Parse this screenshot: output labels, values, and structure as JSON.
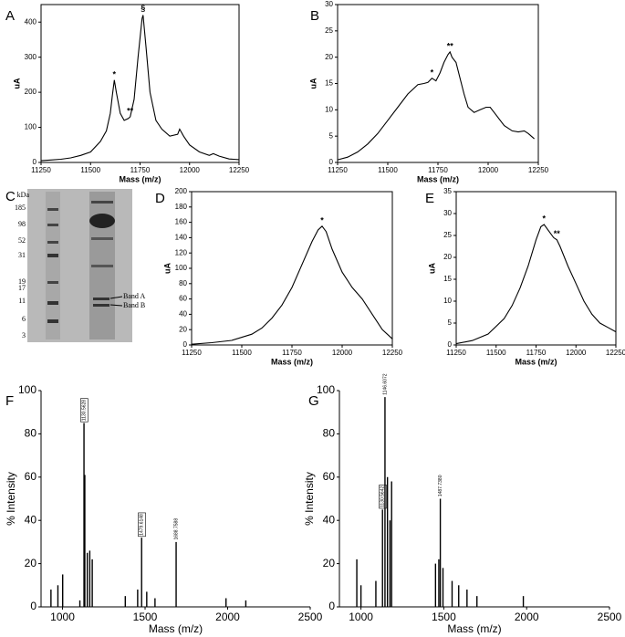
{
  "chart_data": [
    {
      "label": "A",
      "type": "line",
      "color": "#000000",
      "xlabel": "Mass (m/z)",
      "ylabel": "uA",
      "xlim": [
        11250,
        12250
      ],
      "ylim": [
        0,
        450
      ],
      "xticks": [
        11250,
        11500,
        11750,
        12000,
        12250
      ],
      "yticks": [
        0,
        100,
        200,
        300,
        400
      ],
      "x": [
        11250,
        11300,
        11350,
        11400,
        11450,
        11500,
        11550,
        11580,
        11600,
        11610,
        11620,
        11630,
        11650,
        11670,
        11690,
        11700,
        11720,
        11740,
        11760,
        11765,
        11780,
        11800,
        11830,
        11860,
        11900,
        11940,
        11950,
        11970,
        12000,
        12050,
        12100,
        12120,
        12150,
        12200,
        12250
      ],
      "values": [
        5,
        7,
        9,
        13,
        20,
        30,
        60,
        90,
        140,
        190,
        235,
        200,
        140,
        120,
        125,
        130,
        180,
        300,
        410,
        420,
        330,
        200,
        120,
        95,
        75,
        80,
        95,
        75,
        50,
        30,
        20,
        25,
        18,
        10,
        8
      ],
      "annotations": [
        {
          "text": "*",
          "x": 11620,
          "y": 250
        },
        {
          "text": "**",
          "x": 11700,
          "y": 145
        },
        {
          "text": "§",
          "x": 11765,
          "y": 438
        }
      ]
    },
    {
      "label": "B",
      "type": "line",
      "color": "#000000",
      "xlabel": "Mass (m/z)",
      "ylabel": "uA",
      "xlim": [
        11250,
        12250
      ],
      "ylim": [
        0,
        30
      ],
      "xticks": [
        11250,
        11500,
        11750,
        12000,
        12250
      ],
      "yticks": [
        0,
        5,
        10,
        15,
        20,
        25,
        30
      ],
      "x": [
        11250,
        11300,
        11350,
        11400,
        11450,
        11500,
        11550,
        11600,
        11650,
        11680,
        11700,
        11720,
        11740,
        11760,
        11780,
        11800,
        11810,
        11820,
        11840,
        11860,
        11880,
        11900,
        11930,
        11960,
        11990,
        12010,
        12040,
        12080,
        12120,
        12150,
        12180,
        12200,
        12230
      ],
      "values": [
        0.5,
        1,
        2,
        3.5,
        5.5,
        8,
        10.5,
        13,
        14.8,
        15,
        15.2,
        16,
        15.5,
        17,
        19,
        20.5,
        21,
        20,
        19,
        16,
        13,
        10.5,
        9.5,
        10,
        10.5,
        10.5,
        9,
        7,
        6,
        5.8,
        6,
        5.5,
        4.5
      ],
      "annotations": [
        {
          "text": "*",
          "x": 11720,
          "y": 17
        },
        {
          "text": "**",
          "x": 11810,
          "y": 22
        }
      ]
    },
    {
      "label": "D",
      "type": "line",
      "color": "#000000",
      "xlabel": "Mass (m/z)",
      "ylabel": "uA",
      "xlim": [
        11250,
        12250
      ],
      "ylim": [
        0,
        200
      ],
      "xticks": [
        11250,
        11500,
        11750,
        12000,
        12250
      ],
      "yticks": [
        0,
        20,
        40,
        60,
        80,
        100,
        120,
        140,
        160,
        180,
        200
      ],
      "x": [
        11250,
        11350,
        11450,
        11550,
        11600,
        11650,
        11700,
        11750,
        11800,
        11850,
        11880,
        11900,
        11920,
        11950,
        12000,
        12050,
        12100,
        12150,
        12200,
        12250
      ],
      "values": [
        1,
        3,
        6,
        14,
        22,
        35,
        52,
        75,
        105,
        135,
        150,
        155,
        148,
        125,
        95,
        75,
        60,
        40,
        20,
        8
      ],
      "annotations": [
        {
          "text": "*",
          "x": 11900,
          "y": 162
        }
      ]
    },
    {
      "label": "E",
      "type": "line",
      "color": "#000000",
      "xlabel": "Mass (m/z)",
      "ylabel": "uA",
      "xlim": [
        11250,
        12250
      ],
      "ylim": [
        0,
        35
      ],
      "xticks": [
        11250,
        11500,
        11750,
        12000,
        12250
      ],
      "yticks": [
        0,
        5,
        10,
        15,
        20,
        25,
        30,
        35
      ],
      "x": [
        11250,
        11350,
        11450,
        11550,
        11600,
        11650,
        11700,
        11750,
        11780,
        11800,
        11830,
        11860,
        11880,
        11900,
        11950,
        12000,
        12050,
        12100,
        12150,
        12200,
        12250
      ],
      "values": [
        0.3,
        1,
        2.5,
        6,
        9,
        13,
        18,
        24,
        27,
        27.5,
        26,
        24.5,
        24,
        22.5,
        18,
        14,
        10,
        7,
        5,
        4,
        3
      ],
      "annotations": [
        {
          "text": "*",
          "x": 11800,
          "y": 28.7
        },
        {
          "text": "**",
          "x": 11880,
          "y": 25.3
        }
      ]
    },
    {
      "label": "F",
      "type": "bar",
      "color": "#000000",
      "xlabel": "Mass (m/z)",
      "ylabel": "% Intensity",
      "xlim": [
        870,
        2500
      ],
      "ylim": [
        0,
        100
      ],
      "xticks": [
        1000,
        1500,
        2000,
        2500
      ],
      "yticks": [
        0,
        20,
        40,
        60,
        80,
        100
      ],
      "x": [
        930,
        972,
        1001,
        1105,
        1130,
        1135,
        1150,
        1165,
        1180,
        1380,
        1455,
        1479,
        1510,
        1560,
        1688,
        1990,
        2110
      ],
      "values": [
        8,
        10,
        15,
        3,
        85,
        61,
        25,
        26,
        22,
        5,
        8,
        32,
        7,
        4,
        30,
        4,
        3
      ],
      "annotations": [
        {
          "text": "1130.5628",
          "x": 1130,
          "y": 86,
          "boxed": true
        },
        {
          "text": "1479.6148",
          "x": 1479,
          "y": 33,
          "boxed": true
        },
        {
          "text": "1688.7588",
          "x": 1688,
          "y": 31,
          "boxed": false
        }
      ]
    },
    {
      "label": "G",
      "type": "bar",
      "color": "#000000",
      "xlabel": "Mass (m/z)",
      "ylabel": "% Intensity",
      "xlim": [
        870,
        2500
      ],
      "ylim": [
        0,
        100
      ],
      "xticks": [
        1000,
        1500,
        2000,
        2500
      ],
      "yticks": [
        0,
        20,
        40,
        60,
        80,
        100
      ],
      "x": [
        975,
        1000,
        1090,
        1130,
        1145,
        1160,
        1175,
        1185,
        1450,
        1470,
        1479,
        1495,
        1550,
        1590,
        1640,
        1700,
        1980
      ],
      "values": [
        22,
        10,
        12,
        45,
        97,
        60,
        40,
        58,
        20,
        22,
        50,
        18,
        12,
        10,
        8,
        5,
        5
      ],
      "annotations": [
        {
          "text": "1130.5642",
          "x": 1130,
          "y": 46,
          "boxed": true
        },
        {
          "text": "1146.6072",
          "x": 1145,
          "y": 98,
          "boxed": false
        },
        {
          "text": "1487.7380",
          "x": 1479,
          "y": 51,
          "boxed": false
        }
      ]
    }
  ],
  "gel": {
    "label": "C",
    "unit": "kDa",
    "markers": [
      185,
      98,
      52,
      31,
      19,
      17,
      11,
      6,
      3
    ],
    "band_labels": [
      "Band A",
      "Band B"
    ]
  }
}
